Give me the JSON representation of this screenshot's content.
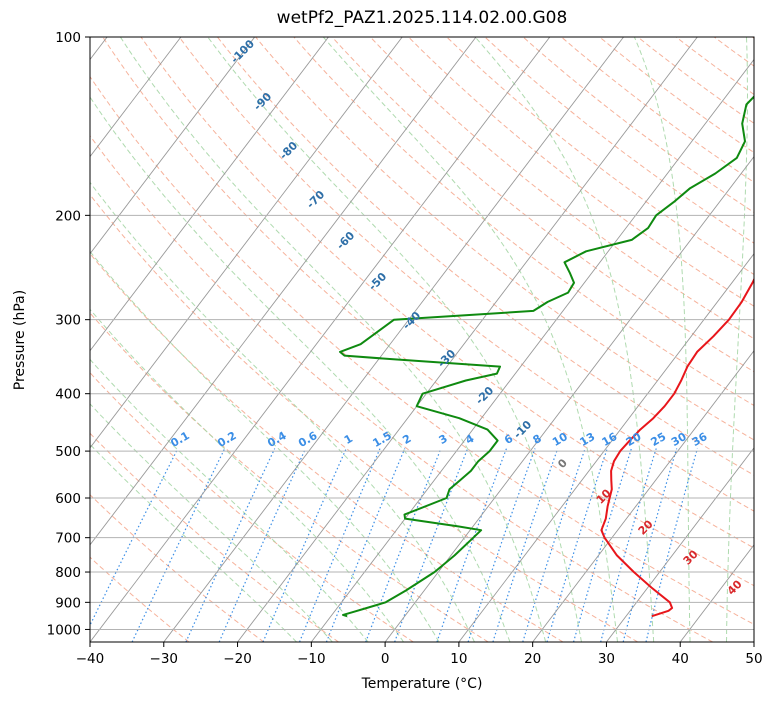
{
  "chart_data": {
    "type": "line",
    "diagram": "skew-T log-P",
    "title": "wetPf2_PAZ1.2025.114.02.00.G08",
    "xlabel": "Temperature (°C)",
    "ylabel": "Pressure (hPa)",
    "xlim": [
      -40,
      50
    ],
    "ylim": [
      1050,
      100
    ],
    "y_scale": "log",
    "x_ticks": [
      -40,
      -30,
      -20,
      -10,
      0,
      10,
      20,
      30,
      40,
      50
    ],
    "y_ticks": [
      100,
      200,
      300,
      400,
      500,
      600,
      700,
      800,
      900,
      1000
    ],
    "grid": true,
    "colors": {
      "temperature": "#e8161b",
      "dewpoint": "#0f8a10",
      "dry_adiabat": "#f4a58a",
      "moist_adiabat": "#a6d6a6",
      "mixing_ratio": "#3b8ee6",
      "isotherm": "#999999",
      "pressure_grid": "#b3b3b3"
    },
    "series": [
      {
        "key": "temperature",
        "pressure": [
          950,
          930,
          920,
          900,
          850,
          800,
          750,
          700,
          680,
          650,
          620,
          600,
          580,
          560,
          540,
          520,
          500,
          480,
          460,
          440,
          420,
          400,
          380,
          360,
          340,
          320,
          300,
          280,
          260,
          240,
          220,
          200,
          190,
          180,
          170,
          160,
          150,
          140,
          130,
          120,
          110,
          100
        ],
        "values": [
          33.5,
          35.2,
          35.4,
          34.5,
          30.5,
          26.5,
          22.5,
          19,
          17.8,
          17.2,
          16.2,
          15.6,
          15.0,
          14.0,
          13.0,
          12.4,
          12.2,
          12.4,
          12.7,
          13.3,
          13.6,
          13.6,
          13.2,
          12.6,
          12.4,
          13.0,
          13.4,
          13.3,
          12.8,
          12.0,
          11.5,
          11.2,
          11.0,
          10.8,
          11.0,
          12.5,
          12.8,
          12.0,
          10.6,
          10.0,
          9.0,
          7.6
        ]
      },
      {
        "key": "dewpoint",
        "pressure": [
          950,
          945,
          935,
          920,
          900,
          860,
          800,
          750,
          700,
          680,
          670,
          650,
          640,
          600,
          580,
          560,
          540,
          520,
          500,
          480,
          460,
          440,
          420,
          400,
          380,
          370,
          360,
          350,
          345,
          340,
          330,
          300,
          290,
          280,
          270,
          260,
          250,
          240,
          230,
          220,
          210,
          200,
          190,
          180,
          170,
          160,
          150,
          140,
          130,
          120,
          110,
          100
        ],
        "values": [
          -7.8,
          -8.5,
          -7.5,
          -6,
          -4,
          -2.5,
          -0.5,
          0.5,
          1.2,
          1.5,
          -2,
          -10,
          -10.5,
          -6.5,
          -7,
          -6.5,
          -6,
          -6,
          -5.5,
          -5.5,
          -8,
          -13,
          -20,
          -20.5,
          -16,
          -12.5,
          -12.8,
          -28,
          -35,
          -36,
          -34,
          -32,
          -14,
          -13,
          -11.2,
          -11.4,
          -13,
          -14.8,
          -13,
          -8,
          -7,
          -7.2,
          -6.2,
          -5.4,
          -3.5,
          -2.2,
          -2.8,
          -5.0,
          -6.4,
          -5.8,
          -3.5,
          -1.0
        ]
      }
    ],
    "annotations": {
      "dry_adiabat_labels": [
        "-100",
        "-90",
        "-80",
        "-70",
        "-60",
        "-50",
        "-40",
        "-30",
        "-20",
        "-10",
        "0",
        "10",
        "20",
        "30",
        "40"
      ],
      "mixing_ratio_labels": [
        "0.1",
        "0.2",
        "0.4",
        "0.6",
        "1",
        "1.5",
        "2",
        "3",
        "4",
        "6",
        "8",
        "10",
        "13",
        "16",
        "20",
        "25",
        "30",
        "36"
      ]
    }
  }
}
